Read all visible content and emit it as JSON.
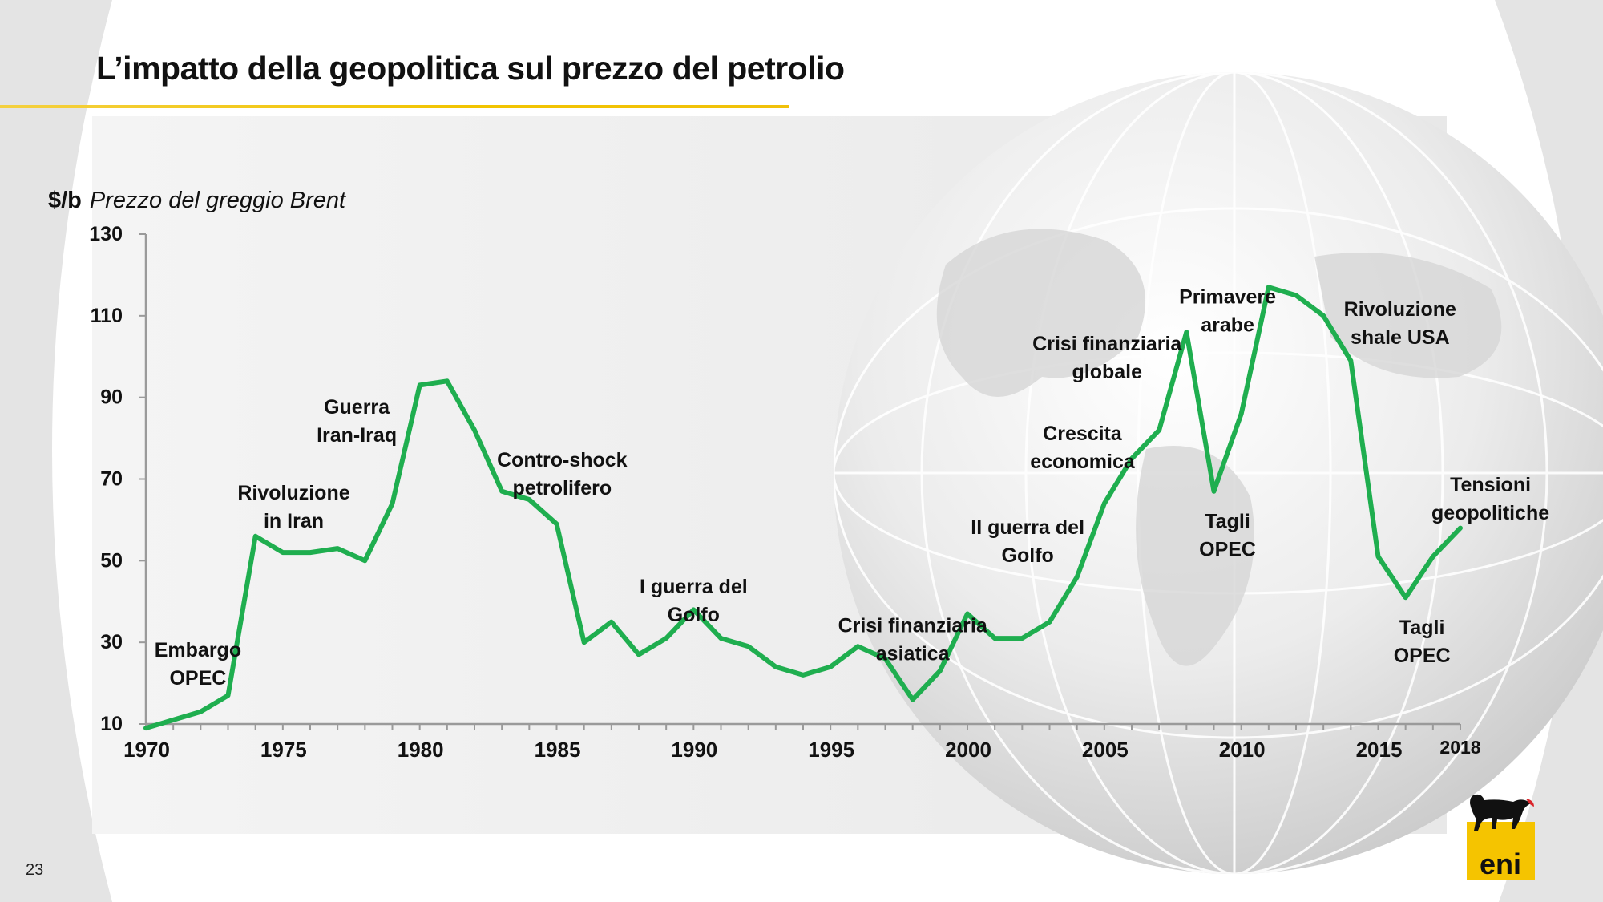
{
  "slide": {
    "title": "L’impatto della geopolitica sul prezzo del petrolio",
    "unit": "$/b",
    "subtitle": "Prezzo del greggio Brent",
    "page_number": "23",
    "logo_text": "eni"
  },
  "colors": {
    "line": "#1fae4f",
    "accent_yellow": "#f2c400",
    "background_gray": "#e4e4e4"
  },
  "chart_data": {
    "type": "line",
    "title": "",
    "xlabel": "",
    "ylabel": "$/b",
    "xlim": [
      1970,
      2018
    ],
    "ylim": [
      10,
      130
    ],
    "yticks": [
      10,
      30,
      50,
      70,
      90,
      110,
      130
    ],
    "xticks": [
      1970,
      1975,
      1980,
      1985,
      1990,
      1995,
      2000,
      2005,
      2010,
      2015,
      2018
    ],
    "grid": false,
    "series": [
      {
        "name": "",
        "x": [
          1970,
          1971,
          1972,
          1973,
          1974,
          1975,
          1976,
          1977,
          1978,
          1979,
          1980,
          1981,
          1982,
          1983,
          1984,
          1985,
          1986,
          1987,
          1988,
          1989,
          1990,
          1991,
          1992,
          1993,
          1994,
          1995,
          1996,
          1997,
          1998,
          1999,
          2000,
          2001,
          2002,
          2003,
          2004,
          2005,
          2006,
          2007,
          2008,
          2009,
          2010,
          2011,
          2012,
          2013,
          2014,
          2015,
          2016,
          2017,
          2018
        ],
        "y": [
          9,
          11,
          13,
          17,
          56,
          52,
          52,
          53,
          50,
          64,
          93,
          94,
          82,
          67,
          65,
          59,
          30,
          35,
          27,
          31,
          38,
          31,
          29,
          24,
          22,
          24,
          29,
          26,
          16,
          23,
          37,
          31,
          31,
          35,
          46,
          64,
          75,
          82,
          106,
          67,
          86,
          117,
          115,
          110,
          99,
          51,
          41,
          51,
          58
        ]
      }
    ],
    "annotations": [
      {
        "lines": [
          "Embargo",
          "OPEC"
        ],
        "x": 1971.9,
        "y": 26.5,
        "align": "center"
      },
      {
        "lines": [
          "Rivoluzione",
          "in Iran"
        ],
        "x": 1975.4,
        "y": 65,
        "align": "center"
      },
      {
        "lines": [
          "Guerra",
          "Iran-Iraq"
        ],
        "x": 1977.7,
        "y": 86,
        "align": "center"
      },
      {
        "lines": [
          "Contro-shock",
          "petrolifero"
        ],
        "x": 1985.2,
        "y": 73,
        "align": "center"
      },
      {
        "lines": [
          "I guerra del",
          "Golfo"
        ],
        "x": 1990,
        "y": 42,
        "align": "center"
      },
      {
        "lines": [
          "Crisi finanziaria",
          "asiatica"
        ],
        "x": 1998,
        "y": 32.5,
        "align": "center"
      },
      {
        "lines": [
          "II guerra del",
          "Golfo"
        ],
        "x": 2002.2,
        "y": 56.5,
        "align": "center"
      },
      {
        "lines": [
          "Crescita",
          "economica"
        ],
        "x": 2004.2,
        "y": 79.5,
        "align": "center"
      },
      {
        "lines": [
          "Crisi finanziaria",
          "globale"
        ],
        "x": 2005.1,
        "y": 101.5,
        "align": "center"
      },
      {
        "lines": [
          "Primavere",
          "arabe"
        ],
        "x": 2009.5,
        "y": 113,
        "align": "center"
      },
      {
        "lines": [
          "Tagli",
          "OPEC"
        ],
        "x": 2009.5,
        "y": 58,
        "align": "center"
      },
      {
        "lines": [
          "Rivoluzione",
          "shale USA"
        ],
        "x": 2015.8,
        "y": 110,
        "align": "center"
      },
      {
        "lines": [
          "Tagli",
          "OPEC"
        ],
        "x": 2016.6,
        "y": 32,
        "align": "center"
      },
      {
        "lines": [
          "Tensioni",
          "geopolitiche"
        ],
        "x": 2019.1,
        "y": 67,
        "align": "center"
      }
    ]
  }
}
